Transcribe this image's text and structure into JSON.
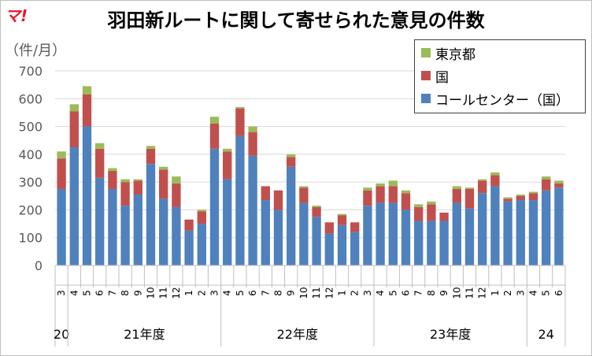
{
  "header": {
    "logo": "マ!",
    "title": "羽田新ルートに関して寄せられた意見の件数",
    "unit": "（件/月）"
  },
  "chart_data": {
    "type": "bar",
    "stacked": true,
    "ylim": [
      0,
      700
    ],
    "yticks": [
      0,
      100,
      200,
      300,
      400,
      500,
      600,
      700
    ],
    "grid": true,
    "legend_position": "top-right",
    "categories": [
      "3",
      "4",
      "5",
      "6",
      "7",
      "8",
      "9",
      "10",
      "11",
      "12",
      "1",
      "2",
      "3",
      "4",
      "5",
      "6",
      "7",
      "8",
      "9",
      "10",
      "11",
      "12",
      "1",
      "2",
      "3",
      "4",
      "5",
      "6",
      "7",
      "8",
      "9",
      "10",
      "11",
      "12",
      "1",
      "2",
      "3",
      "4",
      "5",
      "6"
    ],
    "year_groups": [
      {
        "label": "20",
        "start": 0,
        "count": 1
      },
      {
        "label": "21年度",
        "start": 1,
        "count": 12
      },
      {
        "label": "22年度",
        "start": 13,
        "count": 12
      },
      {
        "label": "23年度",
        "start": 25,
        "count": 12
      },
      {
        "label": "24",
        "start": 37,
        "count": 3
      }
    ],
    "series": [
      {
        "name": "コールセンター（国）",
        "color": "#4f81bd",
        "values": [
          275,
          425,
          500,
          315,
          275,
          215,
          255,
          365,
          240,
          210,
          125,
          150,
          420,
          310,
          465,
          395,
          235,
          200,
          355,
          225,
          175,
          115,
          145,
          120,
          215,
          225,
          225,
          200,
          160,
          160,
          160,
          225,
          205,
          260,
          285,
          230,
          235,
          235,
          270,
          280
        ]
      },
      {
        "name": "国",
        "color": "#c0504d",
        "values": [
          110,
          130,
          115,
          105,
          65,
          85,
          50,
          55,
          105,
          85,
          40,
          45,
          90,
          100,
          100,
          85,
          50,
          70,
          35,
          55,
          35,
          40,
          35,
          35,
          55,
          60,
          60,
          60,
          50,
          60,
          30,
          50,
          70,
          45,
          40,
          10,
          15,
          25,
          40,
          15
        ]
      },
      {
        "name": "東京都",
        "color": "#9bbb59",
        "values": [
          25,
          25,
          30,
          20,
          10,
          10,
          5,
          10,
          10,
          25,
          0,
          5,
          25,
          10,
          5,
          20,
          0,
          0,
          10,
          5,
          5,
          0,
          5,
          0,
          10,
          10,
          20,
          10,
          10,
          10,
          0,
          10,
          5,
          5,
          10,
          5,
          5,
          5,
          10,
          10
        ]
      }
    ]
  },
  "legend": [
    {
      "label": "東京都",
      "color": "#9bbb59"
    },
    {
      "label": "国",
      "color": "#c0504d"
    },
    {
      "label": "コールセンター（国）",
      "color": "#4f81bd"
    }
  ]
}
